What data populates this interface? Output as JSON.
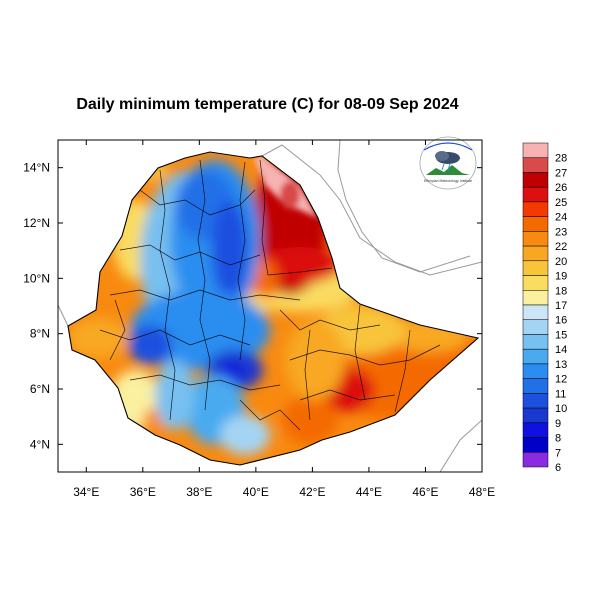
{
  "title": "Daily minimum temperature (C) for 08-09 Sep 2024",
  "map": {
    "lon_range": [
      33,
      48
    ],
    "lat_range": [
      3,
      15
    ],
    "lon_ticks": [
      "34°E",
      "36°E",
      "38°E",
      "40°E",
      "42°E",
      "44°E",
      "46°E",
      "48°E"
    ],
    "lat_ticks": [
      "4°N",
      "6°N",
      "8°N",
      "10°N",
      "12°N",
      "14°N"
    ]
  },
  "colorbar": {
    "levels": [
      "28",
      "27",
      "26",
      "25",
      "24",
      "23",
      "22",
      "20",
      "19",
      "18",
      "17",
      "16",
      "15",
      "14",
      "13",
      "12",
      "11",
      "10",
      "9",
      "8",
      "7",
      "6"
    ],
    "colors": [
      "#f7b2b2",
      "#d94a4a",
      "#c00000",
      "#dc1010",
      "#f43a00",
      "#f46a00",
      "#f88a10",
      "#f8a820",
      "#f8c43a",
      "#fadc60",
      "#faf0a0",
      "#cce6f8",
      "#a4d4f4",
      "#78c0f0",
      "#4aaaf0",
      "#2a8ef0",
      "#2070e8",
      "#1e50e0",
      "#1a38d0",
      "#1010e0",
      "#0000c8",
      "#8a2be2"
    ]
  },
  "logo": {
    "agency_text": "Ethiopian Meteorology Institute"
  }
}
